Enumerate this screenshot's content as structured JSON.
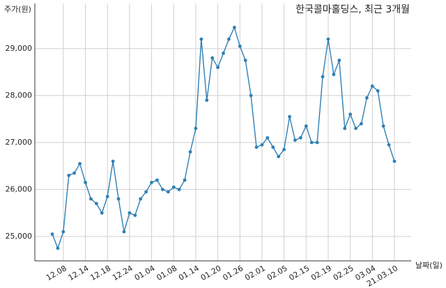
{
  "chart_data": {
    "type": "line",
    "title": "한국콜마홀딩스, 최근 3개월",
    "y_label": "주가(원)",
    "x_label": "날짜(일)",
    "color": "#2e7fb5",
    "grid": true,
    "categories": [
      null,
      null,
      "12.08",
      null,
      null,
      null,
      "12.14",
      null,
      null,
      null,
      "12.18",
      null,
      null,
      null,
      "12.24",
      null,
      null,
      null,
      "01.04",
      null,
      null,
      null,
      "01.08",
      null,
      null,
      null,
      "01.14",
      null,
      null,
      null,
      "01.20",
      null,
      null,
      null,
      "01.26",
      null,
      null,
      null,
      "02.01",
      null,
      null,
      null,
      "02.05",
      null,
      null,
      null,
      "02.15",
      null,
      null,
      null,
      "02.19",
      null,
      null,
      null,
      "02.25",
      null,
      null,
      null,
      "03.04",
      null,
      null,
      null,
      "21.03.10"
    ],
    "values": [
      25050,
      24750,
      25100,
      26300,
      26350,
      26550,
      26150,
      25800,
      25700,
      25500,
      25850,
      26600,
      25800,
      25100,
      25500,
      25450,
      25800,
      25950,
      26150,
      26200,
      26000,
      25950,
      26050,
      26000,
      26200,
      26800,
      27300,
      29200,
      27900,
      28800,
      28600,
      28900,
      29200,
      29450,
      29050,
      28750,
      28000,
      26900,
      26950,
      27100,
      26900,
      26700,
      26850,
      27550,
      27050,
      27100,
      27350,
      27000,
      27000,
      28400,
      29200,
      28450,
      28750,
      27300,
      27600,
      27300,
      27400,
      27950,
      28200,
      28100,
      27350,
      26950,
      26600
    ],
    "ylim": [
      24480,
      29960
    ],
    "yticks": [
      {
        "value": 25000,
        "label": "25,000"
      },
      {
        "value": 26000,
        "label": "26,000"
      },
      {
        "value": 27000,
        "label": "27,000"
      },
      {
        "value": 28000,
        "label": "28,000"
      },
      {
        "value": 29000,
        "label": "29,000"
      }
    ]
  }
}
